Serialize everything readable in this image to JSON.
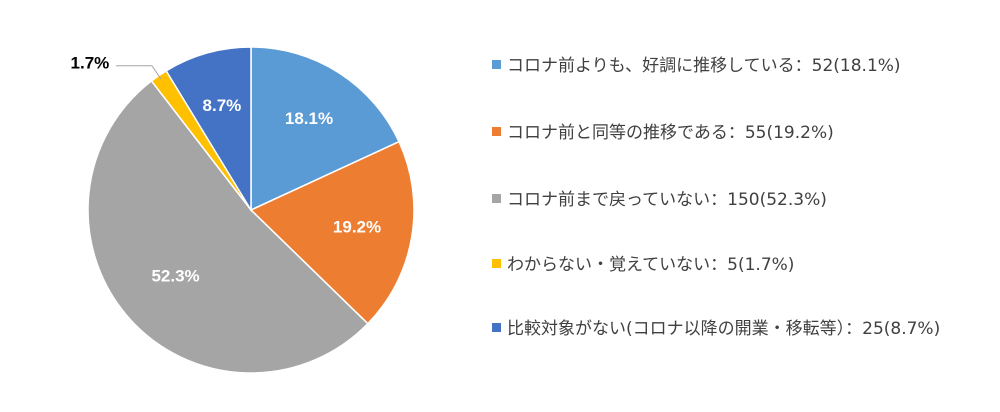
{
  "chart_data": {
    "type": "pie",
    "title": "",
    "slices": [
      {
        "label": "コロナ前よりも、好調に推移している：52(18.1%)",
        "count": 52,
        "percent": 18.1,
        "data_label": "18.1%",
        "color": "#5B9BD5",
        "label_color": "#FFFFFF"
      },
      {
        "label": "コロナ前と同等の推移である：55(19.2%)",
        "count": 55,
        "percent": 19.2,
        "data_label": "19.2%",
        "color": "#ED7D31",
        "label_color": "#FFFFFF"
      },
      {
        "label": "コロナ前まで戻っていない：150(52.3%)",
        "count": 150,
        "percent": 52.3,
        "data_label": "52.3%",
        "color": "#A5A5A5",
        "label_color": "#FFFFFF"
      },
      {
        "label": "わからない・覚えていない：5(1.7%)",
        "count": 5,
        "percent": 1.7,
        "data_label": "1.7%",
        "color": "#FFC000",
        "label_color": "#000000"
      },
      {
        "label": "比較対象がない(コロナ以降の開業・移転等）：25(8.7%)",
        "count": 25,
        "percent": 8.7,
        "data_label": "8.7%",
        "color": "#4472C4",
        "label_color": "#FFFFFF"
      }
    ],
    "legend_position": "right"
  }
}
